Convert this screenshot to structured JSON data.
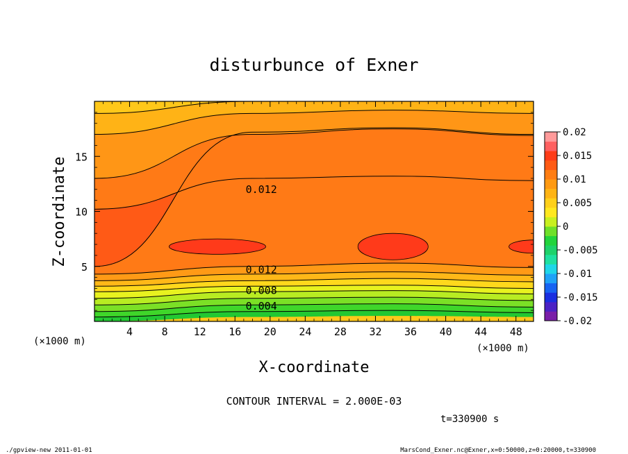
{
  "chart_data": {
    "type": "heatmap",
    "title": "disturbunce of Exner",
    "xlabel": "X-coordinate",
    "ylabel": "Z-coordinate",
    "x_unit_left": "(×1000 m)",
    "x_unit_right": "(×1000 m)",
    "xlim": [
      0,
      50
    ],
    "ylim": [
      0,
      20
    ],
    "x_ticks": [
      "4",
      "8",
      "12",
      "16",
      "20",
      "24",
      "28",
      "32",
      "36",
      "40",
      "44",
      "48"
    ],
    "y_ticks": [
      "5",
      "10",
      "15"
    ],
    "contour_interval_text": "CONTOUR INTERVAL = 2.000E-03",
    "time_text": "t=330900 s",
    "contour_labels": [
      "0.012",
      "0.012",
      "0.008",
      "0.004"
    ],
    "colorbar": {
      "ticks": [
        "0.02",
        "0.015",
        "0.01",
        "0.005",
        "0",
        "-0.005",
        "-0.01",
        "-0.015",
        "-0.02"
      ],
      "colors": [
        "#7a1fa8",
        "#4b22c4",
        "#1a2ee0",
        "#1763f2",
        "#1fa2f7",
        "#1fd6e8",
        "#1fe0a0",
        "#1ed26a",
        "#22d43c",
        "#6fe02a",
        "#c8f020",
        "#ffe81f",
        "#ffd01a",
        "#ffb414",
        "#ff9a12",
        "#ff7d12",
        "#ff5a14",
        "#ff3c18",
        "#ff6060",
        "#ff9a9a"
      ]
    },
    "bands": [
      {
        "z": [
          0.0,
          0.4,
          0.5,
          0.4
        ],
        "color": "#22c832"
      },
      {
        "z": [
          0.4,
          0.9,
          1.0,
          0.8
        ],
        "color": "#3fd62a"
      },
      {
        "z": [
          0.9,
          1.5,
          1.6,
          1.3
        ],
        "color": "#7be026"
      },
      {
        "z": [
          1.5,
          2.1,
          2.2,
          1.9
        ],
        "color": "#b8ec22"
      },
      {
        "z": [
          2.1,
          2.7,
          2.8,
          2.5
        ],
        "color": "#e8f21f"
      },
      {
        "z": [
          2.7,
          3.2,
          3.3,
          3.0
        ],
        "color": "#ffd81c"
      },
      {
        "z": [
          3.2,
          3.7,
          3.9,
          3.6
        ],
        "color": "#ffb818"
      },
      {
        "z": [
          3.7,
          4.3,
          4.5,
          4.2
        ],
        "color": "#ff9a16"
      },
      {
        "z": [
          4.3,
          5.0,
          5.3,
          4.9
        ],
        "color": "#ff7a16"
      },
      {
        "z": [
          5.0,
          17.2,
          17.6,
          17.0
        ],
        "color": "#ff5a16"
      },
      {
        "z": [
          10.2,
          13.0,
          13.2,
          12.8
        ],
        "color": "#ff7a16"
      },
      {
        "z": [
          13.0,
          17.0,
          17.5,
          16.9
        ],
        "color": "#ff9616"
      },
      {
        "z": [
          17.0,
          18.9,
          19.2,
          18.9
        ],
        "color": "#ffb316"
      },
      {
        "z": [
          18.9,
          20.0,
          20.0,
          20.0
        ],
        "color": "#ffc81a"
      }
    ]
  },
  "footer": {
    "left": "./gpview-new   2011-01-01",
    "right": "MarsCond_Exner.nc@Exner,x=0:50000,z=0:20000,t=330900"
  }
}
